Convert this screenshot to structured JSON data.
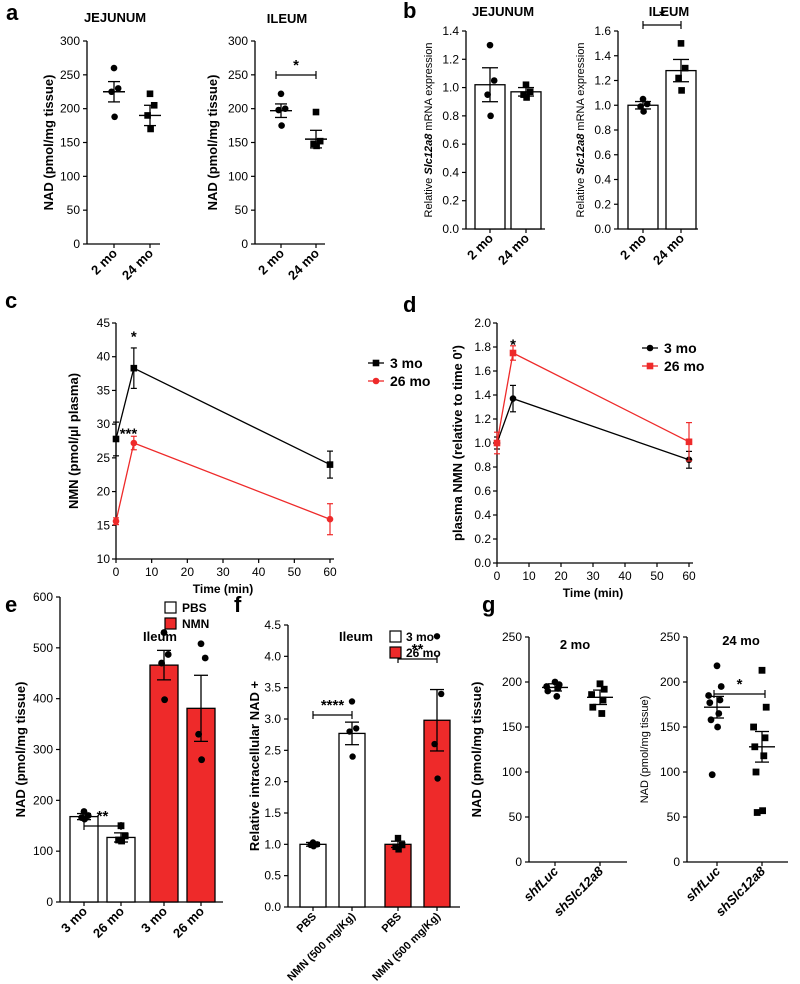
{
  "panel_labels": [
    "a",
    "b",
    "c",
    "d",
    "e",
    "f",
    "g"
  ],
  "colors": {
    "black": "#000000",
    "red": "#ee2a2a",
    "axis": "#000000"
  },
  "chart_data": [
    {
      "id": "a1",
      "panel": "a",
      "type": "scatter",
      "title": "JEJUNUM",
      "ylabel": "NAD (pmol/mg tissue)",
      "categories": [
        "2 mo",
        "24 mo"
      ],
      "ylim": [
        0,
        300
      ],
      "yticks": [
        0,
        50,
        100,
        150,
        200,
        250,
        300
      ],
      "means": [
        225,
        190
      ],
      "sem": [
        15,
        15
      ],
      "points": [
        [
          260,
          230,
          225,
          188
        ],
        [
          222,
          205,
          190,
          170
        ]
      ],
      "markers": [
        "circle",
        "square"
      ]
    },
    {
      "id": "a2",
      "panel": "a",
      "type": "scatter",
      "title": "ILEUM",
      "ylabel": "NAD (pmol/mg tissue)",
      "categories": [
        "2 mo",
        "24 mo"
      ],
      "ylim": [
        0,
        300
      ],
      "yticks": [
        0,
        50,
        100,
        150,
        200,
        250,
        300
      ],
      "means": [
        197,
        155
      ],
      "sem": [
        10,
        13
      ],
      "points": [
        [
          222,
          200,
          198,
          175
        ],
        [
          195,
          152,
          148,
          145
        ]
      ],
      "markers": [
        "circle",
        "square"
      ],
      "significance": "*"
    },
    {
      "id": "b1",
      "panel": "b",
      "type": "bar",
      "title": "JEJUNUM",
      "ylabel": "Relative Slc12a8 mRNA expression",
      "categories": [
        "2 mo",
        "24 mo"
      ],
      "ylim": [
        0,
        1.4
      ],
      "yticks": [
        0.0,
        0.2,
        0.4,
        0.6,
        0.8,
        1.0,
        1.2,
        1.4
      ],
      "values": [
        1.02,
        0.97
      ],
      "sem": [
        0.12,
        0.03
      ],
      "points": [
        [
          1.3,
          1.05,
          0.95,
          0.8
        ],
        [
          1.02,
          0.97,
          0.95,
          0.93
        ]
      ],
      "markers": [
        "circle",
        "square"
      ]
    },
    {
      "id": "b2",
      "panel": "b",
      "type": "bar",
      "title": "ILEUM",
      "ylabel": "Relative Slc12a8 mRNA expression",
      "categories": [
        "2 mo",
        "24 mo"
      ],
      "ylim": [
        0,
        1.6
      ],
      "yticks": [
        0.0,
        0.2,
        0.4,
        0.6,
        0.8,
        1.0,
        1.2,
        1.4,
        1.6
      ],
      "values": [
        1.0,
        1.28
      ],
      "sem": [
        0.03,
        0.09
      ],
      "points": [
        [
          1.05,
          1.01,
          0.99,
          0.95
        ],
        [
          1.5,
          1.3,
          1.22,
          1.12
        ]
      ],
      "markers": [
        "circle",
        "square"
      ],
      "significance": "*"
    },
    {
      "id": "c",
      "panel": "c",
      "type": "line",
      "xlabel": "Time (min)",
      "ylabel": "NMN (pmol/µl plasma)",
      "xlim": [
        0,
        60
      ],
      "ylim": [
        10,
        45
      ],
      "xticks": [
        0,
        10,
        20,
        30,
        40,
        50,
        60
      ],
      "yticks": [
        10,
        15,
        20,
        25,
        30,
        35,
        40,
        45
      ],
      "series": [
        {
          "name": "3 mo",
          "color": "#000000",
          "marker": "square",
          "x": [
            0,
            5,
            60
          ],
          "y": [
            27.8,
            38.3,
            24.0
          ],
          "err": [
            2.5,
            3.0,
            2.0
          ]
        },
        {
          "name": "26 mo",
          "color": "#ee2a2a",
          "marker": "circle",
          "x": [
            0,
            5,
            60
          ],
          "y": [
            15.6,
            27.2,
            15.9
          ],
          "err": [
            0.5,
            1.0,
            2.3
          ]
        }
      ],
      "annotations": [
        {
          "x": 5,
          "y": 43.0,
          "text": "*"
        },
        {
          "x": 3.5,
          "y": 28.6,
          "text": "***"
        }
      ]
    },
    {
      "id": "d",
      "panel": "d",
      "type": "line",
      "xlabel": "Time (min)",
      "ylabel": "plasma NMN (relative to time 0')",
      "xlim": [
        0,
        60
      ],
      "ylim": [
        0.0,
        2.0
      ],
      "xticks": [
        0,
        10,
        20,
        30,
        40,
        50,
        60
      ],
      "yticks": [
        0.0,
        0.2,
        0.4,
        0.6,
        0.8,
        1.0,
        1.2,
        1.4,
        1.6,
        1.8,
        2.0
      ],
      "series": [
        {
          "name": "3 mo",
          "color": "#000000",
          "marker": "circle",
          "x": [
            0,
            5,
            60
          ],
          "y": [
            1.0,
            1.37,
            0.86
          ],
          "err": [
            0.05,
            0.11,
            0.07
          ]
        },
        {
          "name": "26 mo",
          "color": "#ee2a2a",
          "marker": "square",
          "x": [
            0,
            5,
            60
          ],
          "y": [
            1.0,
            1.75,
            1.01
          ],
          "err": [
            0.09,
            0.06,
            0.16
          ]
        }
      ],
      "annotations": [
        {
          "x": 5,
          "y": 1.82,
          "text": "*"
        }
      ]
    },
    {
      "id": "e",
      "panel": "e",
      "type": "bar",
      "title": "Ileum",
      "ylabel": "NAD (pmol/mg tissue)",
      "categories": [
        "3 mo",
        "26 mo",
        "3 mo",
        "26 mo"
      ],
      "ylim": [
        0,
        600
      ],
      "yticks": [
        0,
        100,
        200,
        300,
        400,
        500,
        600
      ],
      "values": [
        168,
        127,
        466,
        381
      ],
      "sem": [
        6,
        9,
        29,
        65
      ],
      "fills": [
        "white",
        "white",
        "red",
        "red"
      ],
      "points": [
        [
          178,
          170,
          166,
          163
        ],
        [
          150,
          130,
          122,
          120
        ],
        [
          530,
          487,
          470,
          398
        ],
        [
          508,
          480,
          330,
          280
        ]
      ],
      "markers": [
        "circle",
        "square",
        "circle",
        "circle"
      ],
      "legend": [
        {
          "label": "PBS",
          "fill": "white"
        },
        {
          "label": "NMN",
          "fill": "red"
        }
      ],
      "significance": "**"
    },
    {
      "id": "f",
      "panel": "f",
      "type": "bar",
      "title": "Ileum",
      "ylabel": "Relative intracellular NAD +",
      "categories": [
        "PBS",
        "NMN (500 mg/Kg)",
        "PBS",
        "NMN (500 mg/Kg)"
      ],
      "ylim": [
        0,
        4.5
      ],
      "yticks": [
        0.0,
        0.5,
        1.0,
        1.5,
        2.0,
        2.5,
        3.0,
        3.5,
        4.0,
        4.5
      ],
      "values": [
        1.0,
        2.77,
        1.0,
        2.98
      ],
      "sem": [
        0.03,
        0.18,
        0.05,
        0.49
      ],
      "fills": [
        "white",
        "white",
        "red",
        "red"
      ],
      "points": [
        [
          1.03,
          1.0,
          0.99,
          0.97
        ],
        [
          3.28,
          2.85,
          2.8,
          2.4
        ],
        [
          1.1,
          0.99,
          0.96,
          0.92
        ],
        [
          4.32,
          3.4,
          2.6,
          2.05
        ]
      ],
      "markers": [
        "circle",
        "circle",
        "square",
        "circle"
      ],
      "legend": [
        {
          "label": "3 mo",
          "fill": "white"
        },
        {
          "label": "26 mo",
          "fill": "red"
        }
      ],
      "significance": [
        "****",
        "**"
      ]
    },
    {
      "id": "g1",
      "panel": "g",
      "type": "scatter",
      "title": "2 mo",
      "ylabel": "NAD (pmol/mg tissue)",
      "categories": [
        "shfLuc",
        "shSlc12a8"
      ],
      "ylim": [
        0,
        250
      ],
      "yticks": [
        0,
        50,
        100,
        150,
        200,
        250
      ],
      "means": [
        194,
        183
      ],
      "sem": [
        4,
        8
      ],
      "points": [
        [
          200,
          197,
          195,
          193,
          190,
          184
        ],
        [
          198,
          192,
          186,
          180,
          172,
          165
        ]
      ],
      "markers": [
        "circle",
        "square"
      ]
    },
    {
      "id": "g2",
      "panel": "g",
      "type": "scatter",
      "title": "24 mo",
      "ylabel": "NAD (pmol/mg tissue)",
      "categories": [
        "shfLuc",
        "shSlc12a8"
      ],
      "ylim": [
        0,
        250
      ],
      "yticks": [
        0,
        50,
        100,
        150,
        200,
        250
      ],
      "means": [
        172,
        128
      ],
      "sem": [
        12,
        17
      ],
      "points": [
        [
          218,
          195,
          185,
          180,
          177,
          165,
          158,
          150,
          97
        ],
        [
          213,
          172,
          150,
          138,
          128,
          118,
          100,
          57,
          55
        ]
      ],
      "markers": [
        "circle",
        "square"
      ],
      "significance": "*"
    }
  ]
}
